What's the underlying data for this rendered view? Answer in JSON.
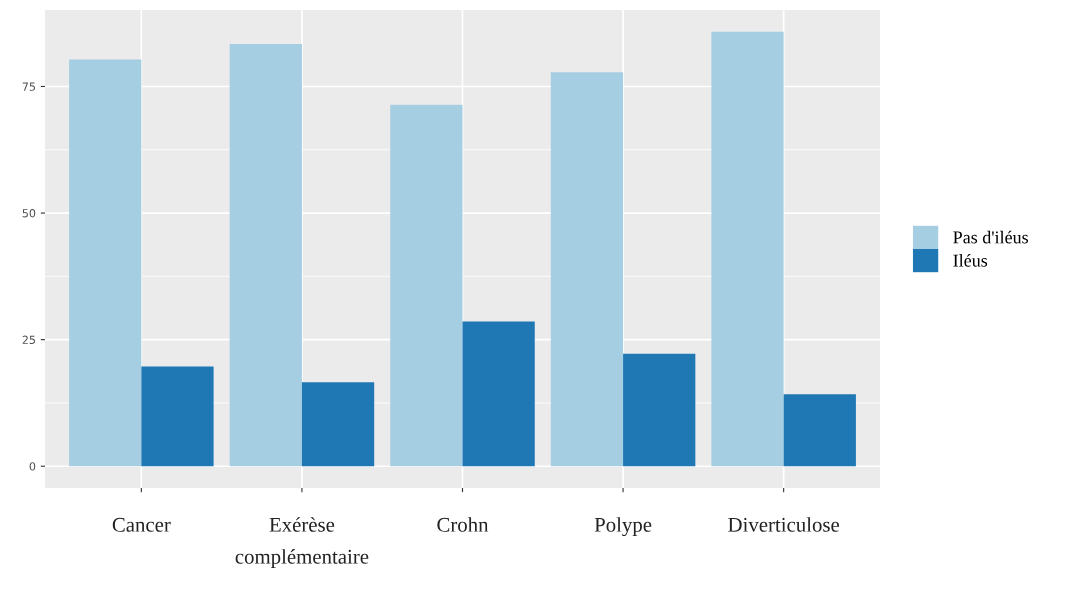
{
  "chart_data": {
    "type": "bar",
    "categories": [
      "Cancer",
      "Exérèse\ncomplémentaire",
      "Crohn",
      "Polype",
      "Diverticulose"
    ],
    "series": [
      {
        "name": "Pas d'iléus",
        "color": "#a6cee3",
        "values": [
          80.3,
          83.4,
          71.4,
          77.8,
          85.8
        ]
      },
      {
        "name": "Iléus",
        "color": "#1f78b4",
        "values": [
          19.7,
          16.6,
          28.6,
          22.2,
          14.2
        ]
      }
    ],
    "ylim": [
      -4.3,
      90.1
    ],
    "yticks": [
      0,
      25,
      50,
      75
    ],
    "grid": true,
    "legend": "right"
  }
}
